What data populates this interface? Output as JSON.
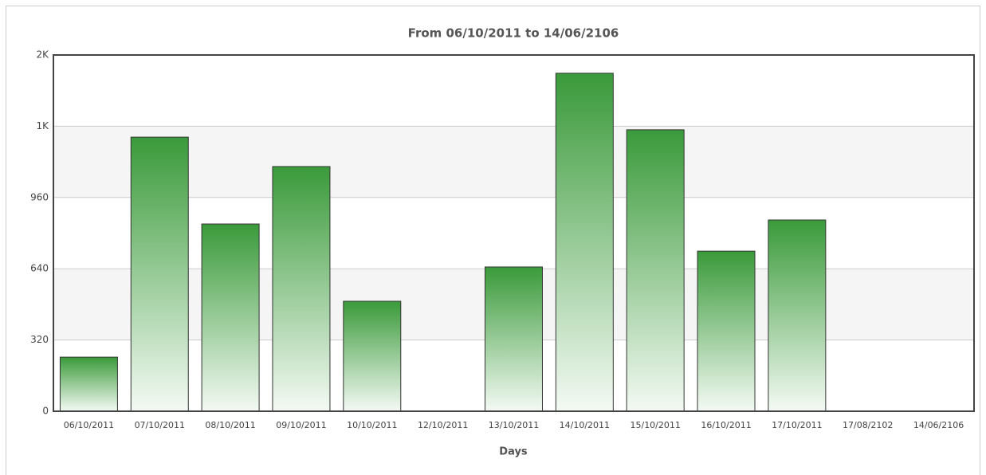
{
  "chart_data": {
    "type": "bar",
    "title": "From 06/10/2011 to 14/06/2106",
    "x_label": "Days",
    "categories": [
      "06/10/2011",
      "07/10/2011",
      "08/10/2011",
      "09/10/2011",
      "10/10/2011",
      "12/10/2011",
      "13/10/2011",
      "14/10/2011",
      "15/10/2011",
      "16/10/2011",
      "17/10/2011",
      "17/08/2102",
      "14/06/2106"
    ],
    "values": [
      243,
      1231,
      841,
      1099,
      494,
      0,
      648,
      1518,
      1264,
      719,
      859,
      0,
      0
    ],
    "color": "#3a9a3a",
    "ylim": [
      0,
      1600
    ],
    "yticks": [
      0,
      320,
      640,
      960,
      {
        "value": 1280,
        "label": "1K"
      },
      {
        "value": 1600,
        "label": "2K"
      }
    ],
    "grid": true
  }
}
